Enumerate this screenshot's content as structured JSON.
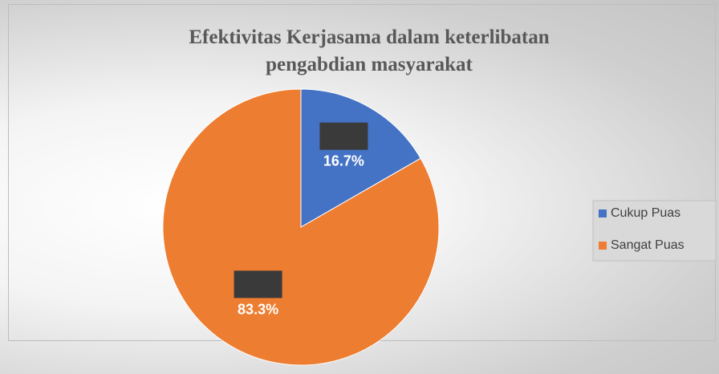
{
  "chart_data": {
    "type": "pie",
    "title": "Efektivitas Kerjasama dalam keterlibatan pengabdian masyarakat",
    "categories": [
      "Cukup Puas",
      "Sangat Puas"
    ],
    "values": [
      16.7,
      83.3
    ],
    "value_labels": [
      "16.7%",
      "83.3%"
    ],
    "colors": [
      "#4472c4",
      "#ed7d31"
    ],
    "legend": "right"
  }
}
